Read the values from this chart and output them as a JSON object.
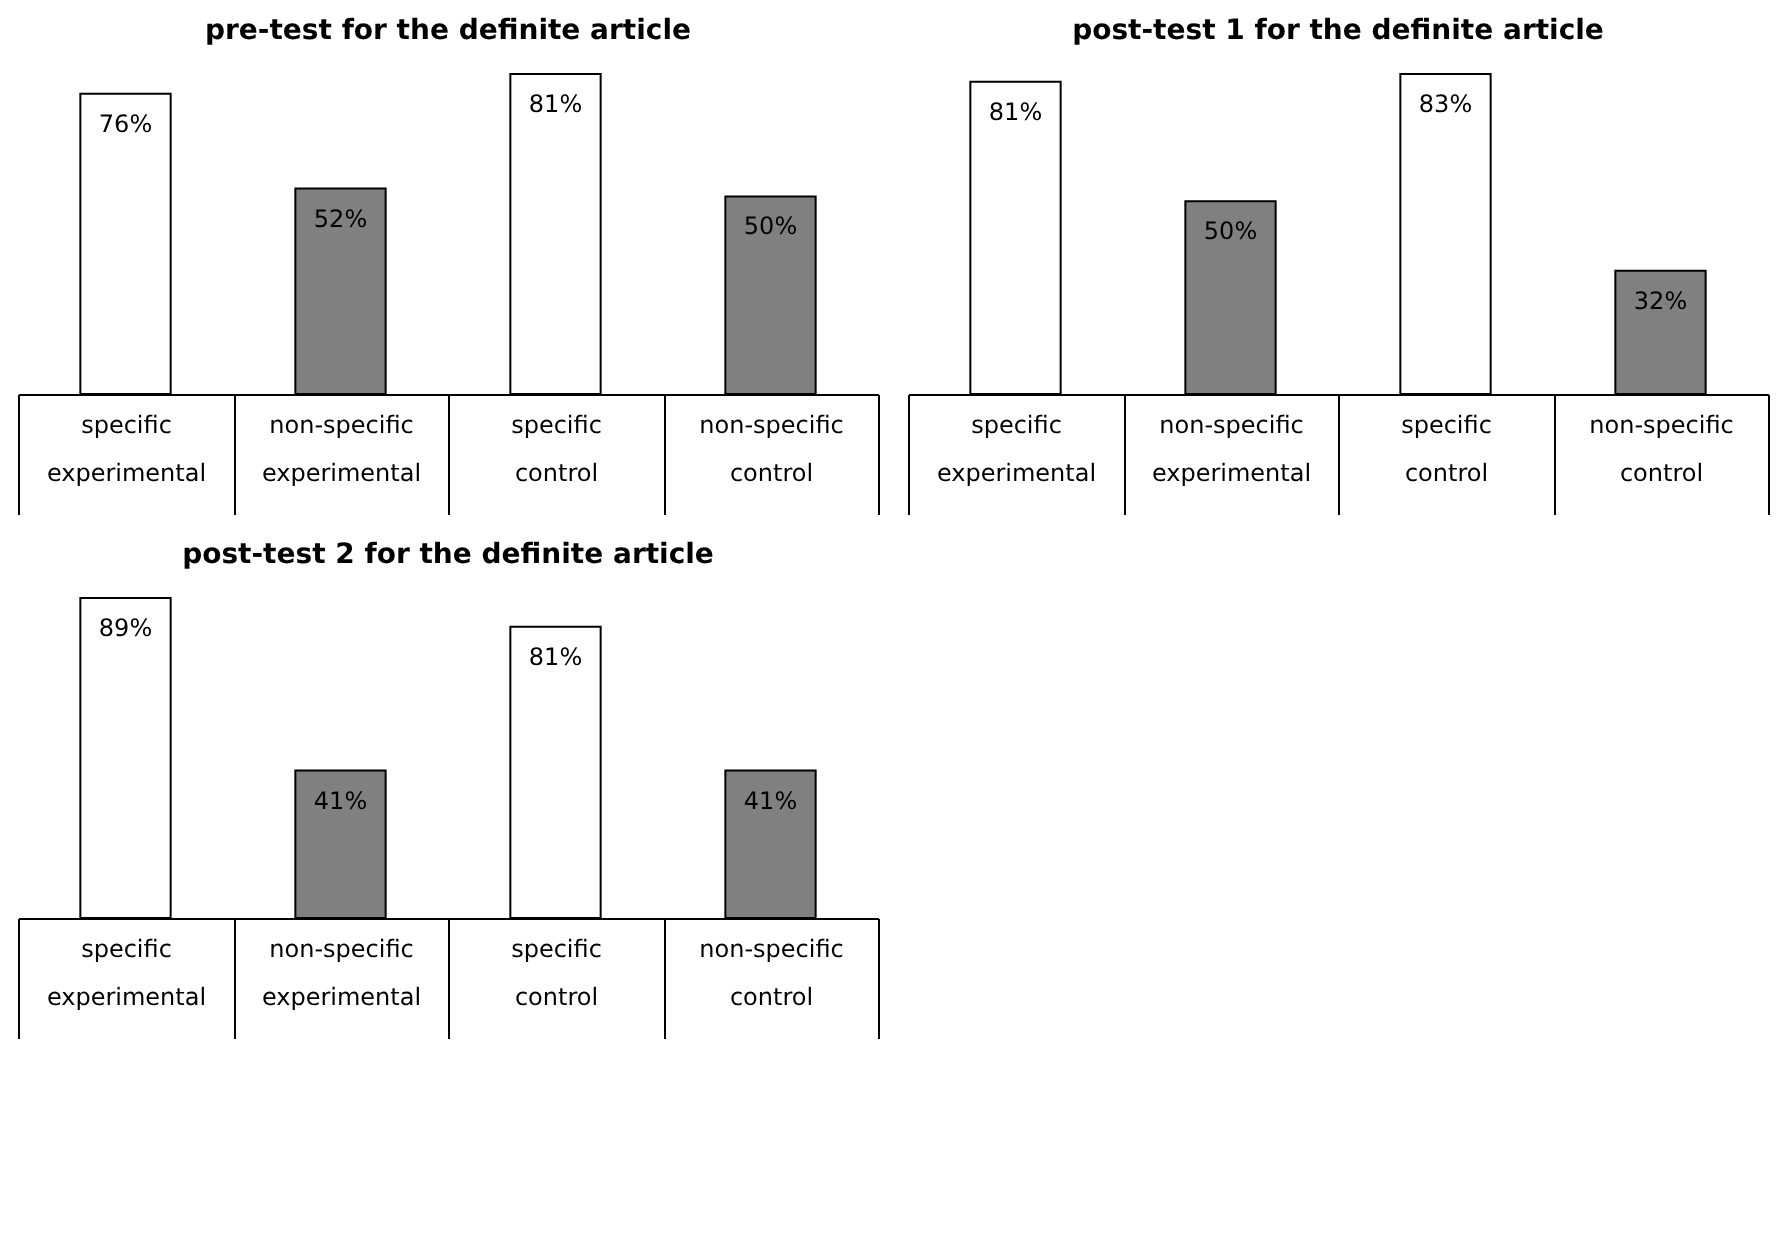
{
  "chart_data": [
    {
      "type": "bar",
      "title": "pre-test for the definite article",
      "categories": [
        "specific experimental",
        "non-specific experimental",
        "specific control",
        "non-specific control"
      ],
      "values": [
        76,
        52,
        81,
        50
      ],
      "colors": [
        "#ffffff",
        "#808080",
        "#ffffff",
        "#808080"
      ],
      "value_labels": [
        "76%",
        "52%",
        "81%",
        "50%"
      ]
    },
    {
      "type": "bar",
      "title": "post-test 1 for the definite article",
      "categories": [
        "specific experimental",
        "non-specific experimental",
        "specific control",
        "non-specific control"
      ],
      "values": [
        81,
        50,
        83,
        32
      ],
      "colors": [
        "#ffffff",
        "#808080",
        "#ffffff",
        "#808080"
      ],
      "value_labels": [
        "81%",
        "50%",
        "83%",
        "32%"
      ]
    },
    {
      "type": "bar",
      "title": "post-test 2 for the definite article",
      "categories": [
        "specific experimental",
        "non-specific experimental",
        "specific control",
        "non-specific control"
      ],
      "values": [
        89,
        41,
        81,
        41
      ],
      "colors": [
        "#ffffff",
        "#808080",
        "#ffffff",
        "#808080"
      ],
      "value_labels": [
        "89%",
        "41%",
        "81%",
        "41%"
      ]
    }
  ]
}
